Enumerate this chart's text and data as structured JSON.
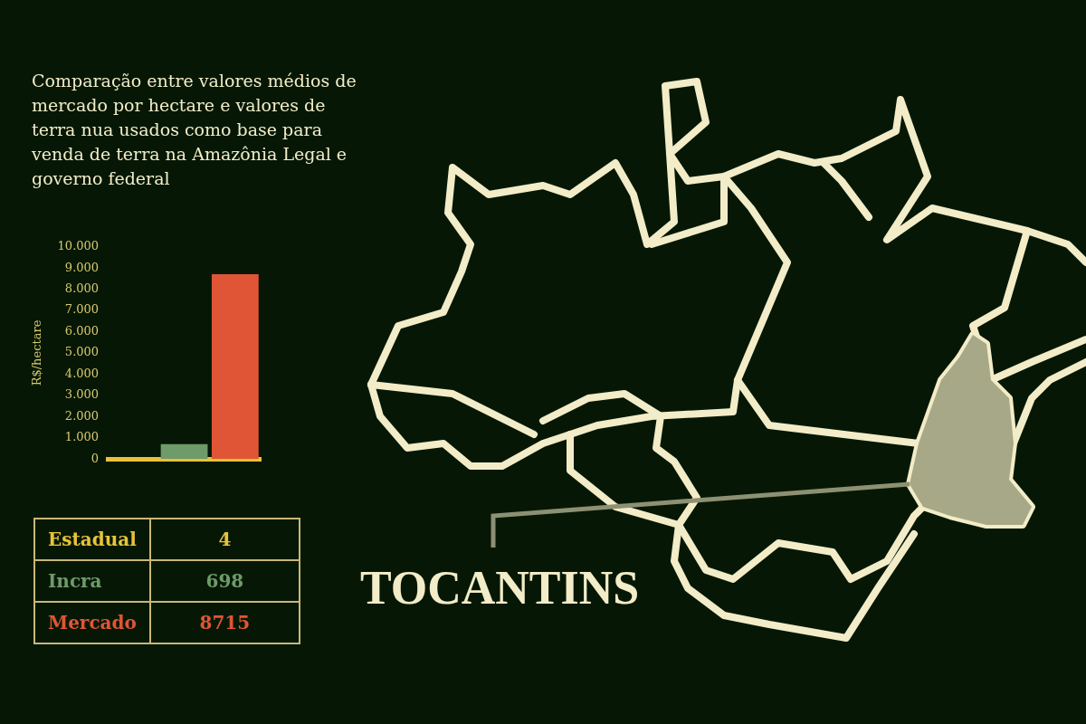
{
  "chart_data": [
    {
      "type": "bar",
      "title": "Comparação entre valores médios de mercado por hectare e valores de terra nua usados como base para venda de terra na Amazônia Legal e governo federal",
      "ylabel": "R$/hectare",
      "categories": [
        null,
        null,
        null
      ],
      "values": [
        4,
        698,
        8715
      ],
      "colors": [
        "#e8c33a",
        "#6f9a6a",
        "#e05536"
      ],
      "ylim": [
        0,
        10000
      ],
      "yticks": [
        0,
        {
          "value": 1000,
          "label": "1.000"
        },
        {
          "value": 2000,
          "label": "2.000"
        },
        {
          "value": 3000,
          "label": "3.000"
        },
        {
          "value": 4000,
          "label": "4.000"
        },
        {
          "value": 5000,
          "label": "5.000"
        },
        {
          "value": 6000,
          "label": "6.000"
        },
        {
          "value": 7000,
          "label": "7.000"
        },
        {
          "value": 8000,
          "label": "8.000"
        },
        {
          "value": 9000,
          "label": "9.000"
        },
        {
          "value": 10000,
          "label": "10.000"
        }
      ],
      "grid": false,
      "legend": false,
      "tick_labels": "y",
      "annotations": [
        "TOCANTINS"
      ]
    },
    {
      "type": "other",
      "categories": [
        "Estadual",
        "Incra",
        "Mercado"
      ],
      "values": [
        4,
        698,
        8715
      ],
      "data_labels": true
    }
  ]
}
